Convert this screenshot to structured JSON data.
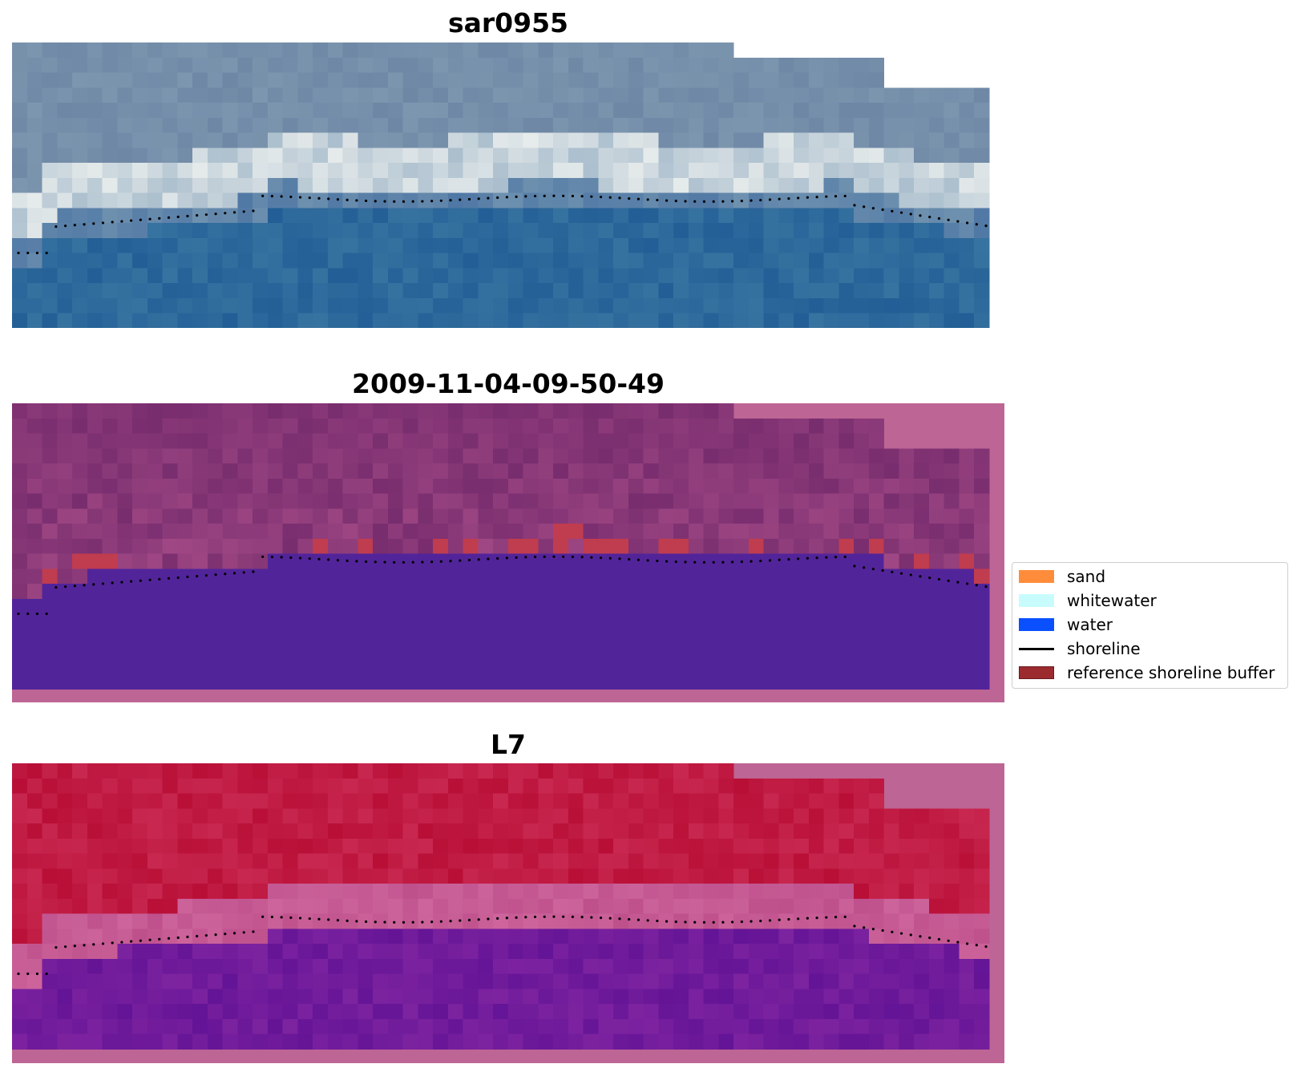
{
  "panels": [
    {
      "title": "sar0955",
      "type": "rgb"
    },
    {
      "title": "2009-11-04-09-50-49",
      "type": "classified"
    },
    {
      "title": "L7",
      "type": "ndwi"
    }
  ],
  "legend": {
    "items": [
      {
        "label": "sand",
        "kind": "patch",
        "color": "#ff8c3a"
      },
      {
        "label": "whitewater",
        "kind": "patch",
        "color": "#c8fcfc"
      },
      {
        "label": "water",
        "kind": "patch",
        "color": "#0a50ff"
      },
      {
        "label": "shoreline",
        "kind": "line",
        "color": "#000000"
      },
      {
        "label": "reference shoreline buffer",
        "kind": "patch",
        "color": "#9b2b2f"
      }
    ]
  },
  "colors": {
    "no_data": "#bd6594",
    "water_class": "#52249a",
    "buffer_class": "#c03c4f",
    "shoreline_dots": "#000000"
  }
}
